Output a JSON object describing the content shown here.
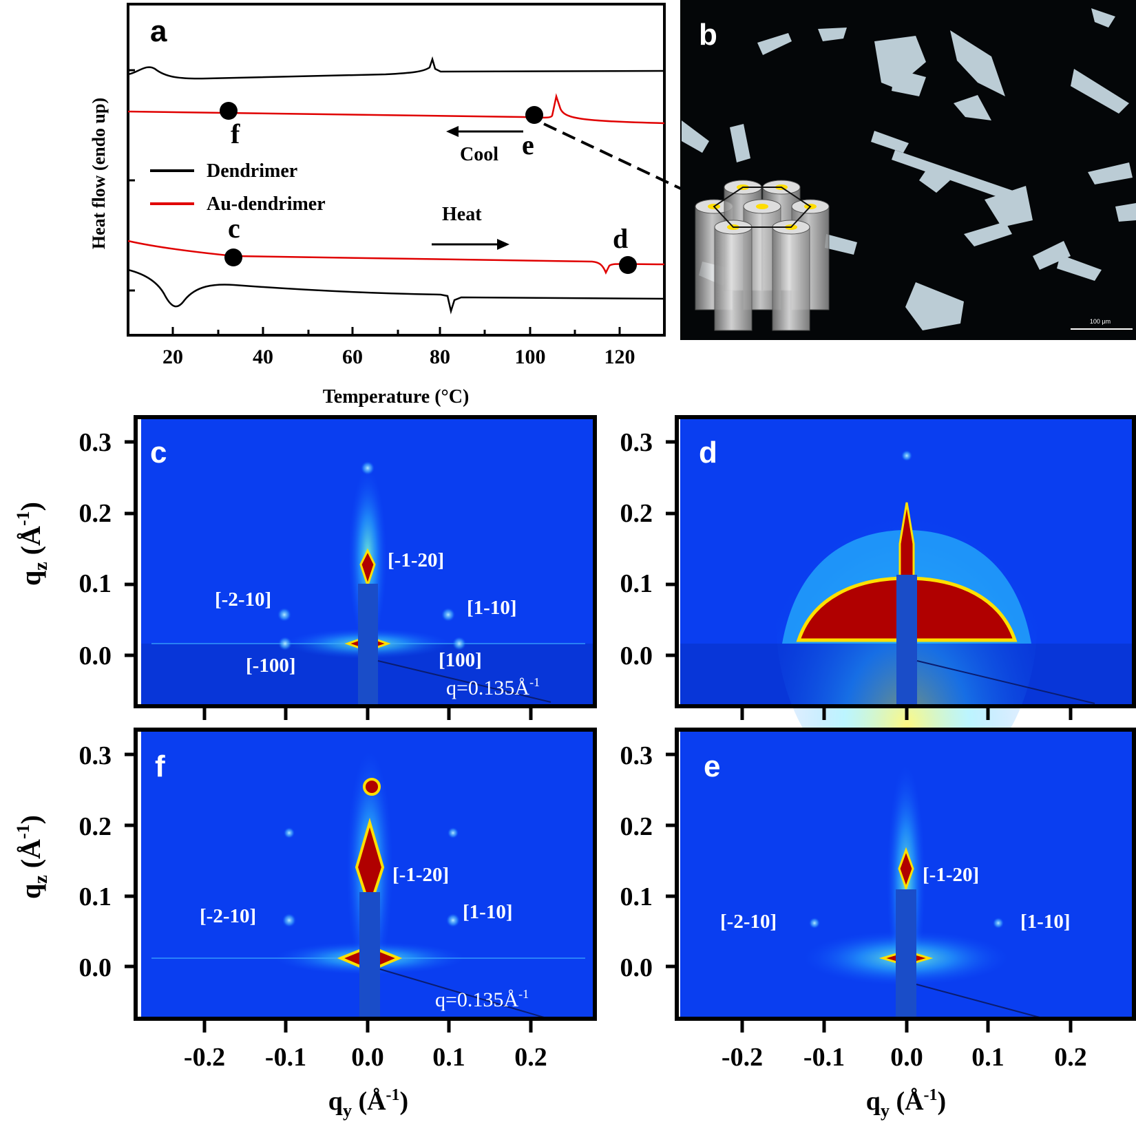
{
  "panel_a": {
    "letter": "a",
    "xlabel": "Temperature (°C)",
    "ylabel": "Heat flow (endo up)",
    "xticks": [
      "20",
      "40",
      "60",
      "80",
      "100",
      "120"
    ],
    "legend": [
      "Dendrimer",
      "Au-dendrimer"
    ],
    "point_labels": [
      "f",
      "e",
      "c",
      "d"
    ],
    "cool_label": "Cool",
    "heat_label": "Heat"
  },
  "panel_b": {
    "letter": "b",
    "scalebar_label": "100 μm"
  },
  "giwaxs": {
    "ylabel_q": "q",
    "ylabel_sub": "z",
    "ylabel_unit": " (Å",
    "ylabel_exp": "-1",
    "ylabel_close": ")",
    "xlabel_q": "q",
    "xlabel_sub": "y",
    "xlabel_unit": " (Å",
    "xlabel_exp": "-1",
    "xlabel_close": ")",
    "yticks": [
      "0.3",
      "0.2",
      "0.1",
      "0.0"
    ],
    "xticks": [
      "-0.2",
      "-0.1",
      "0.0",
      "0.1",
      "0.2"
    ],
    "q_label": "q=0.135Å",
    "q_exp": "-1",
    "panel_c": {
      "letter": "c",
      "labels": [
        "[-1-20]",
        "[-2-10]",
        "[1-10]",
        "[-100]",
        "[100]"
      ]
    },
    "panel_d": {
      "letter": "d"
    },
    "panel_f": {
      "letter": "f",
      "labels": [
        "[-1-20]",
        "[-2-10]",
        "[1-10]"
      ]
    },
    "panel_e": {
      "letter": "e",
      "labels": [
        "[-1-20]",
        "[-2-10]",
        "[1-10]"
      ]
    }
  },
  "colors": {
    "dendrimer": "#000000",
    "au_dendrimer": "#e00000",
    "detector_bg": "#0a3ef0",
    "hot": "#b00000"
  }
}
